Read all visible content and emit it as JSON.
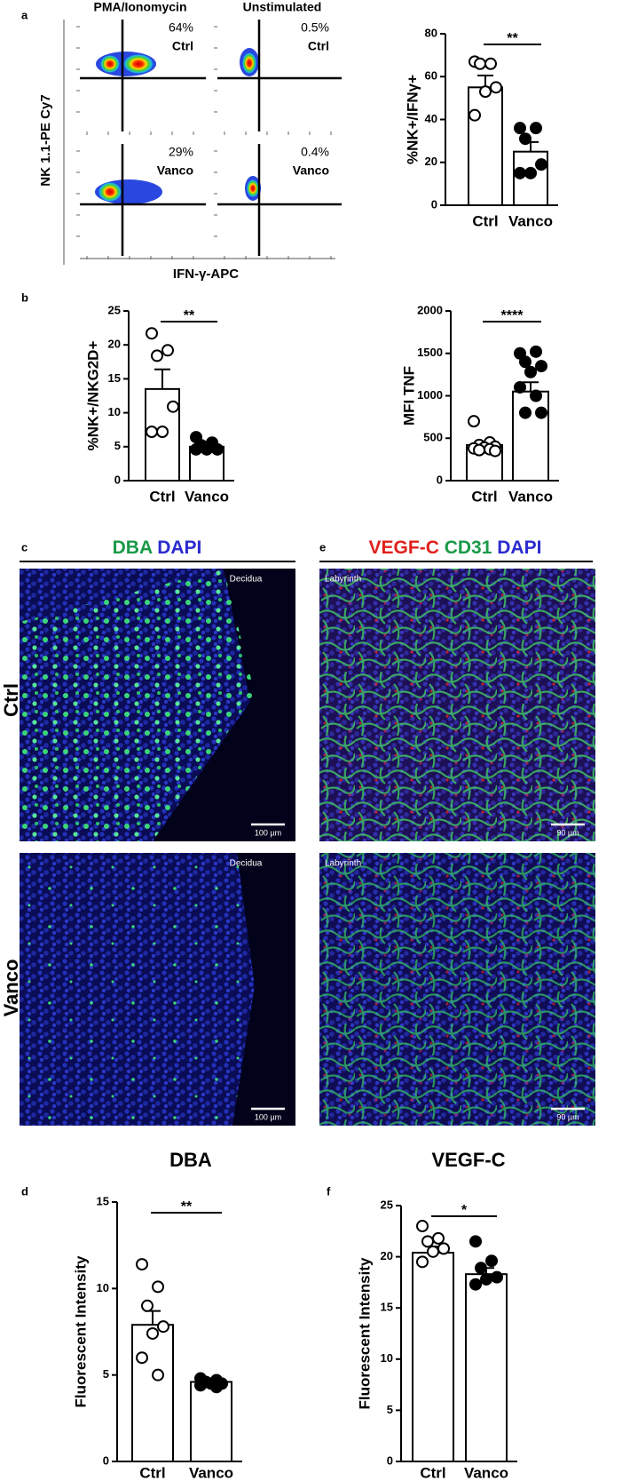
{
  "figure": {
    "panel_letters": [
      "a",
      "b",
      "c",
      "d",
      "e",
      "f"
    ]
  },
  "flow": {
    "columns": [
      "PMA/Ionomycin",
      "Unstimulated"
    ],
    "y_label": "NK 1.1-PE Cy7",
    "x_label": "IFN-γ-APC",
    "plots": [
      {
        "percent": "64%",
        "group": "Ctrl"
      },
      {
        "percent": "0.5%",
        "group": "Ctrl"
      },
      {
        "percent": "29%",
        "group": "Vanco"
      },
      {
        "percent": "0.4%",
        "group": "Vanco"
      }
    ]
  },
  "micrographs": {
    "rows": [
      "Ctrl",
      "Vanco"
    ],
    "c": {
      "stains": [
        {
          "name": "DBA",
          "color": "#1a9a48"
        },
        {
          "name": "DAPI",
          "color": "#2b2bd0"
        }
      ],
      "region": "Decidua",
      "scale_bar": "100 µm"
    },
    "e": {
      "stains": [
        {
          "name": "VEGF-C",
          "color": "#e0201c"
        },
        {
          "name": "CD31",
          "color": "#1a9a48"
        },
        {
          "name": "DAPI",
          "color": "#2b2bd0"
        }
      ],
      "region": "Labyrinth",
      "scale_bar": "90 µm"
    }
  },
  "chart_data": [
    {
      "type": "bar",
      "ylabel": "%NK+/IFNγ+",
      "categories": [
        "Ctrl",
        "Vanco"
      ],
      "values": [
        55,
        25
      ],
      "errors": [
        5.5,
        4.5
      ],
      "points": [
        [
          67,
          66,
          66,
          55,
          53,
          42
        ],
        [
          36,
          36,
          31,
          19,
          15,
          15
        ]
      ],
      "point_colors": [
        "#ffffff",
        "#000000"
      ],
      "color": "#ffffff",
      "significance": "**",
      "ylim": [
        0,
        80
      ],
      "yticks": [
        0,
        20,
        40,
        60,
        80
      ]
    },
    {
      "type": "bar",
      "ylabel": "%NK+/NKG2D+",
      "categories": [
        "Ctrl",
        "Vanco"
      ],
      "values": [
        13.5,
        5.0
      ],
      "errors": [
        2.9,
        0.3
      ],
      "points": [
        [
          21.7,
          19.2,
          18.4,
          10.9,
          7.2,
          7.2
        ],
        [
          6.4,
          5.6,
          5.2,
          4.6,
          4.6,
          4.6
        ]
      ],
      "point_colors": [
        "#ffffff",
        "#000000"
      ],
      "color": "#ffffff",
      "significance": "**",
      "ylim": [
        0,
        25
      ],
      "yticks": [
        0,
        5,
        10,
        15,
        20,
        25
      ]
    },
    {
      "type": "bar",
      "ylabel": "MFI TNF",
      "categories": [
        "Ctrl",
        "Vanco"
      ],
      "values": [
        420,
        1050
      ],
      "errors": [
        35,
        110
      ],
      "points": [
        [
          700,
          450,
          420,
          400,
          390,
          380,
          370,
          360,
          350
        ],
        [
          1500,
          1520,
          1400,
          1350,
          1280,
          1100,
          1000,
          800,
          800
        ]
      ],
      "point_colors": [
        "#ffffff",
        "#000000"
      ],
      "color": "#ffffff",
      "significance": "****",
      "ylim": [
        0,
        2000
      ],
      "yticks": [
        0,
        500,
        1000,
        1500,
        2000
      ]
    },
    {
      "type": "bar",
      "title": "DBA",
      "ylabel": "Fluorescent Intensity",
      "categories": [
        "Ctrl",
        "Vanco"
      ],
      "values": [
        7.9,
        4.6
      ],
      "errors": [
        0.8,
        0.1
      ],
      "points": [
        [
          11.4,
          10.1,
          9.0,
          7.8,
          7.4,
          6.0,
          5.0
        ],
        [
          4.8,
          4.7,
          4.6,
          4.5,
          4.5,
          4.4,
          4.3
        ]
      ],
      "point_colors": [
        "#ffffff",
        "#000000"
      ],
      "color": "#ffffff",
      "significance": "**",
      "ylim": [
        0,
        15
      ],
      "yticks": [
        0,
        5,
        10,
        15
      ]
    },
    {
      "type": "bar",
      "title": "VEGF-C",
      "ylabel": "Fluorescent Intensity",
      "categories": [
        "Ctrl",
        "Vanco"
      ],
      "values": [
        20.4,
        18.3
      ],
      "errors": [
        0.6,
        0.6
      ],
      "points": [
        [
          23.0,
          21.8,
          21.5,
          20.8,
          20.5,
          19.5
        ],
        [
          21.5,
          19.6,
          18.9,
          18.0,
          17.8,
          17.3
        ]
      ],
      "point_colors": [
        "#ffffff",
        "#000000"
      ],
      "color": "#ffffff",
      "significance": "*",
      "ylim": [
        0,
        25
      ],
      "yticks": [
        0,
        5,
        10,
        15,
        20,
        25
      ]
    }
  ]
}
